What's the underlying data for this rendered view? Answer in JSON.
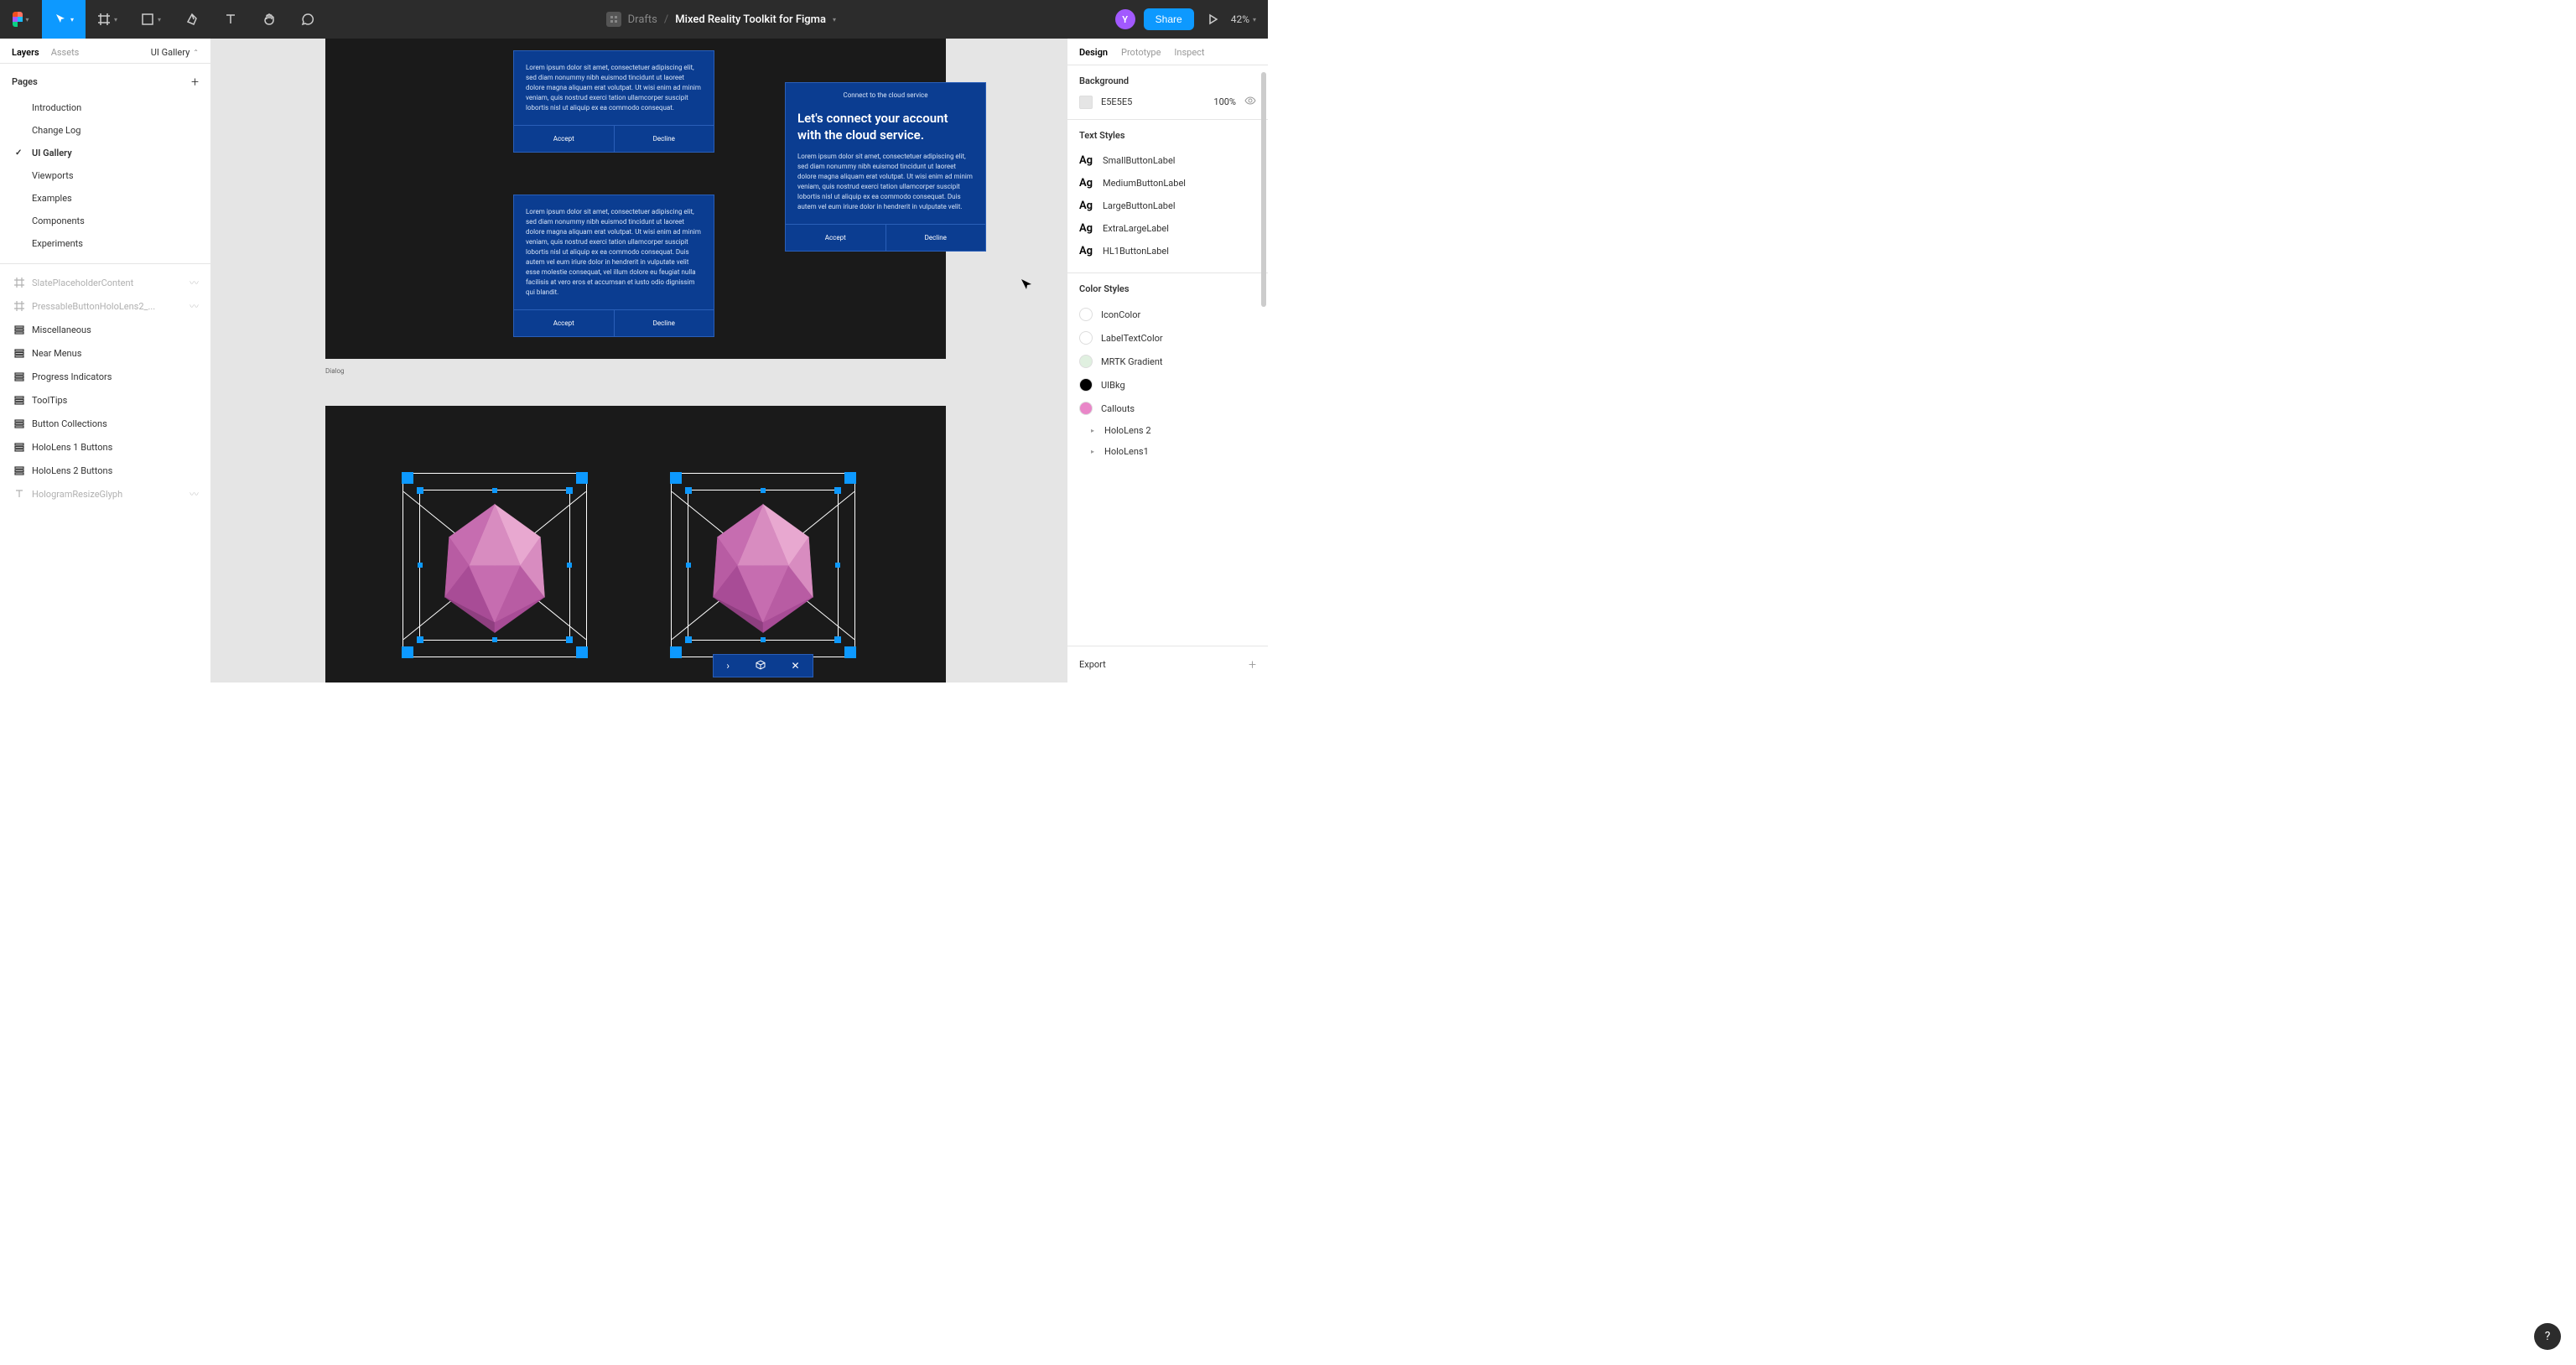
{
  "toolbar": {
    "breadcrumb_folder": "Drafts",
    "breadcrumb_file": "Mixed Reality Toolkit for Figma",
    "share_label": "Share",
    "zoom": "42%",
    "avatar_letter": "Y"
  },
  "left_panel": {
    "tab_layers": "Layers",
    "tab_assets": "Assets",
    "page_selector": "UI Gallery",
    "pages_header": "Pages",
    "pages": [
      {
        "label": "Introduction",
        "active": false
      },
      {
        "label": "Change Log",
        "active": false
      },
      {
        "label": "UI Gallery",
        "active": true
      },
      {
        "label": "Viewports",
        "active": false
      },
      {
        "label": "Examples",
        "active": false
      },
      {
        "label": "Components",
        "active": false
      },
      {
        "label": "Experiments",
        "active": false
      }
    ],
    "layers": [
      {
        "label": "SlatePlaceholderContent",
        "icon": "frame",
        "faded": true,
        "eye": true
      },
      {
        "label": "PressableButtonHoloLens2_...",
        "icon": "frame",
        "faded": true,
        "eye": true
      },
      {
        "label": "Miscellaneous",
        "icon": "stack",
        "faded": false
      },
      {
        "label": "Near Menus",
        "icon": "stack",
        "faded": false
      },
      {
        "label": "Progress Indicators",
        "icon": "stack",
        "faded": false
      },
      {
        "label": "ToolTips",
        "icon": "stack",
        "faded": false
      },
      {
        "label": "Button Collections",
        "icon": "stack",
        "faded": false
      },
      {
        "label": "HoloLens 1 Buttons",
        "icon": "stack",
        "faded": false
      },
      {
        "label": "HoloLens 2 Buttons",
        "icon": "stack",
        "faded": false
      },
      {
        "label": "HologramResizeGlyph",
        "icon": "text",
        "faded": true,
        "eye": true
      }
    ]
  },
  "canvas": {
    "background": "#e5e5e5",
    "artboard_bg": "#1a1a1a",
    "dialog_bg": "#0b3d91",
    "dialog_border": "#2a5fb8",
    "handle_color": "#0d99ff",
    "dialog_label": "Dialog",
    "dialog1": {
      "body": "Lorem ipsum dolor sit amet, consectetuer adipiscing elit, sed diam nonummy nibh euismod tincidunt ut laoreet dolore magna aliquam erat volutpat. Ut wisi enim ad minim veniam, quis nostrud exerci tation ullamcorper suscipit lobortis nisl ut aliquip ex ea commodo consequat.",
      "accept": "Accept",
      "decline": "Decline"
    },
    "dialog2": {
      "body": "Lorem ipsum dolor sit amet, consectetuer adipiscing elit, sed diam nonummy nibh euismod tincidunt ut laoreet dolore magna aliquam erat volutpat. Ut wisi enim ad minim veniam, quis nostrud exerci tation ullamcorper suscipit lobortis nisl ut aliquip ex ea commodo consequat. Duis autem vel eum iriure dolor in hendrerit in vulputate velit esse molestie consequat, vel illum dolore eu feugiat nulla facilisis at vero eros et accumsan et iusto odio dignissim qui blandit.",
      "accept": "Accept",
      "decline": "Decline"
    },
    "dialog3": {
      "header": "Connect to the cloud service",
      "title": "Let's connect your account with the cloud service.",
      "body": "Lorem ipsum dolor sit amet, consectetuer adipiscing elit, sed diam nonummy nibh euismod tincidunt ut laoreet dolore magna aliquam erat volutpat. Ut wisi enim ad minim veniam, quis nostrud exerci tation ullamcorper suscipit lobortis nisl ut aliquip ex ea commodo consequat. Duis autem vel eum iriure dolor in hendrerit in vulputate velit.",
      "accept": "Accept",
      "decline": "Decline"
    },
    "icosa_colors": {
      "c1": "#e8a8d0",
      "c2": "#d88cc0",
      "c3": "#c66db0",
      "c4": "#b85ca3",
      "c5": "#a84c96",
      "c6": "#8f3f80"
    }
  },
  "right_panel": {
    "tab_design": "Design",
    "tab_prototype": "Prototype",
    "tab_inspect": "Inspect",
    "background_title": "Background",
    "bg_hex": "E5E5E5",
    "bg_pct": "100%",
    "text_styles_title": "Text Styles",
    "text_styles": [
      "SmallButtonLabel",
      "MediumButtonLabel",
      "LargeButtonLabel",
      "ExtraLargeLabel",
      "HL1ButtonLabel"
    ],
    "color_styles_title": "Color Styles",
    "color_styles": [
      {
        "name": "IconColor",
        "color": "#ffffff"
      },
      {
        "name": "LabelTextColor",
        "color": "#ffffff"
      },
      {
        "name": "MRTK Gradient",
        "color": "#e0f0e0"
      },
      {
        "name": "UIBkg",
        "color": "#000000"
      },
      {
        "name": "Callouts",
        "color": "#e986c8"
      }
    ],
    "color_groups": [
      "HoloLens 2",
      "HoloLens1"
    ],
    "export_title": "Export"
  }
}
